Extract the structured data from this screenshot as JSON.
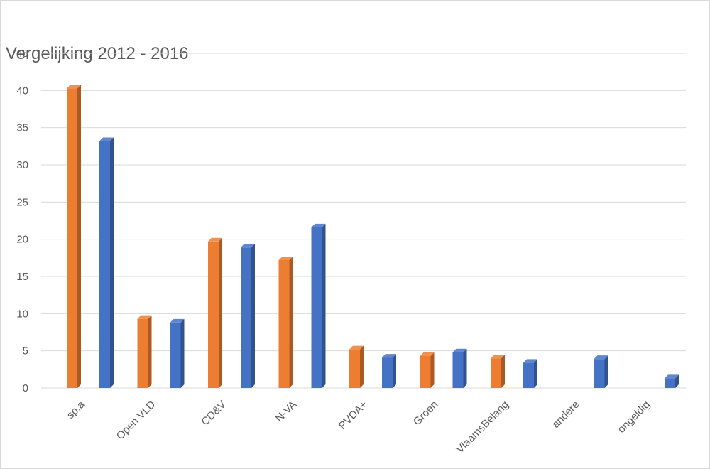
{
  "chart_data": {
    "type": "bar",
    "title": "Vergelijking 2012 - 2016",
    "categories": [
      "sp.a",
      "Open VLD",
      "CD&V",
      "N-VA",
      "PVDA+",
      "Groen",
      "VlaamsBelang",
      "andere",
      "ongeldig"
    ],
    "series": [
      {
        "values": [
          40.3,
          9.3,
          19.7,
          17.2,
          5.2,
          4.3,
          4.0,
          null,
          null
        ],
        "color": "#ed7d31"
      },
      {
        "values": [
          33.2,
          8.8,
          18.9,
          21.6,
          4.1,
          4.8,
          3.4,
          3.9,
          1.3
        ],
        "color": "#4472c4"
      }
    ],
    "ylim": [
      0,
      45
    ],
    "yticks": [
      0,
      5,
      10,
      15,
      20,
      25,
      30,
      35,
      40,
      45
    ],
    "grid": true,
    "legend": "none"
  }
}
